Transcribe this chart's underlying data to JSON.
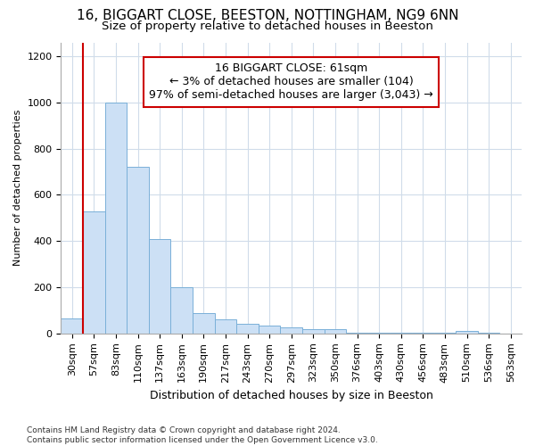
{
  "title1": "16, BIGGART CLOSE, BEESTON, NOTTINGHAM, NG9 6NN",
  "title2": "Size of property relative to detached houses in Beeston",
  "xlabel": "Distribution of detached houses by size in Beeston",
  "ylabel": "Number of detached properties",
  "footnote": "Contains HM Land Registry data © Crown copyright and database right 2024.\nContains public sector information licensed under the Open Government Licence v3.0.",
  "bar_labels": [
    "30sqm",
    "57sqm",
    "83sqm",
    "110sqm",
    "137sqm",
    "163sqm",
    "190sqm",
    "217sqm",
    "243sqm",
    "270sqm",
    "297sqm",
    "323sqm",
    "350sqm",
    "376sqm",
    "403sqm",
    "430sqm",
    "456sqm",
    "483sqm",
    "510sqm",
    "536sqm",
    "563sqm"
  ],
  "bar_values": [
    65,
    530,
    1000,
    720,
    410,
    200,
    90,
    60,
    42,
    35,
    25,
    18,
    18,
    2,
    2,
    2,
    2,
    2,
    12,
    2,
    0
  ],
  "bar_color": "#cce0f5",
  "bar_edge_color": "#7ab0d8",
  "vline_color": "#cc0000",
  "annotation_text": "16 BIGGART CLOSE: 61sqm\n← 3% of detached houses are smaller (104)\n97% of semi-detached houses are larger (3,043) →",
  "annotation_box_color": "#cc0000",
  "ylim": [
    0,
    1260
  ],
  "yticks": [
    0,
    200,
    400,
    600,
    800,
    1000,
    1200
  ],
  "grid_color": "#d0dcea",
  "bg_color": "#ffffff",
  "title1_fontsize": 11,
  "title2_fontsize": 9.5,
  "xlabel_fontsize": 9,
  "ylabel_fontsize": 8,
  "tick_fontsize": 8,
  "annot_fontsize": 9,
  "footnote_fontsize": 6.5
}
